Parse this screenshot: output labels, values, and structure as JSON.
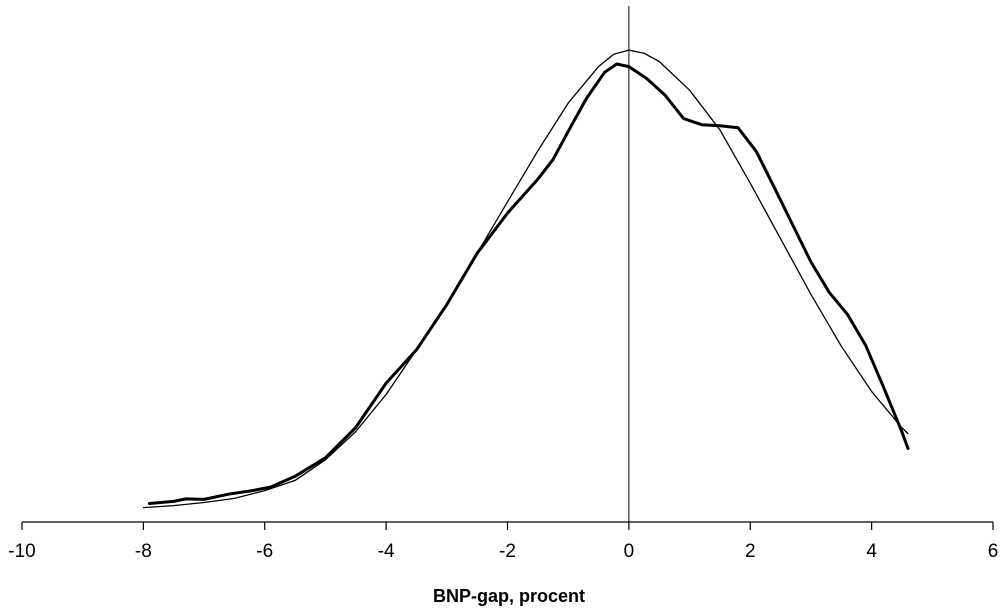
{
  "chart_data": {
    "type": "line",
    "title": "",
    "xlabel": "BNP-gap, procent",
    "ylabel": "",
    "xlim": [
      -10,
      6
    ],
    "ylim": [
      0,
      1.0
    ],
    "xticks": [
      -10,
      -8,
      -6,
      -4,
      -2,
      0,
      2,
      4,
      6
    ],
    "x_tick_labels": [
      "-10",
      "-8",
      "-6",
      "-4",
      "-2",
      "0",
      "2",
      "4",
      "6"
    ],
    "grid": false,
    "legend": "none",
    "reference_lines": [
      {
        "axis": "x",
        "value": 0
      }
    ],
    "series": [
      {
        "style": "thick",
        "color": "#000000",
        "x": [
          -7.9,
          -7.5,
          -7.3,
          -7.0,
          -6.6,
          -6.2,
          -5.9,
          -5.5,
          -5.0,
          -4.5,
          -4.0,
          -3.5,
          -3.0,
          -2.5,
          -2.0,
          -1.5,
          -1.25,
          -1.0,
          -0.7,
          -0.4,
          -0.2,
          0.0,
          0.3,
          0.6,
          0.9,
          1.2,
          1.5,
          1.8,
          2.1,
          2.4,
          2.7,
          3.0,
          3.3,
          3.6,
          3.9,
          4.2,
          4.5,
          4.6
        ],
        "y": [
          0.036,
          0.04,
          0.045,
          0.044,
          0.054,
          0.061,
          0.068,
          0.089,
          0.125,
          0.184,
          0.27,
          0.335,
          0.423,
          0.523,
          0.601,
          0.667,
          0.705,
          0.76,
          0.824,
          0.875,
          0.891,
          0.886,
          0.862,
          0.83,
          0.785,
          0.773,
          0.771,
          0.767,
          0.721,
          0.65,
          0.578,
          0.506,
          0.447,
          0.404,
          0.344,
          0.261,
          0.175,
          0.143
        ]
      },
      {
        "style": "thin",
        "color": "#000000",
        "x": [
          -8.0,
          -7.5,
          -7.0,
          -6.5,
          -6.0,
          -5.5,
          -5.0,
          -4.5,
          -4.0,
          -3.5,
          -3.0,
          -2.5,
          -2.0,
          -1.5,
          -1.0,
          -0.5,
          -0.25,
          0.0,
          0.25,
          0.5,
          1.0,
          1.5,
          2.0,
          2.5,
          3.0,
          3.5,
          4.0,
          4.5,
          4.6
        ],
        "y": [
          0.028,
          0.032,
          0.038,
          0.046,
          0.061,
          0.081,
          0.121,
          0.176,
          0.248,
          0.335,
          0.425,
          0.523,
          0.623,
          0.722,
          0.815,
          0.886,
          0.91,
          0.918,
          0.912,
          0.896,
          0.84,
          0.763,
          0.659,
          0.551,
          0.443,
          0.342,
          0.254,
          0.183,
          0.172
        ]
      }
    ]
  }
}
